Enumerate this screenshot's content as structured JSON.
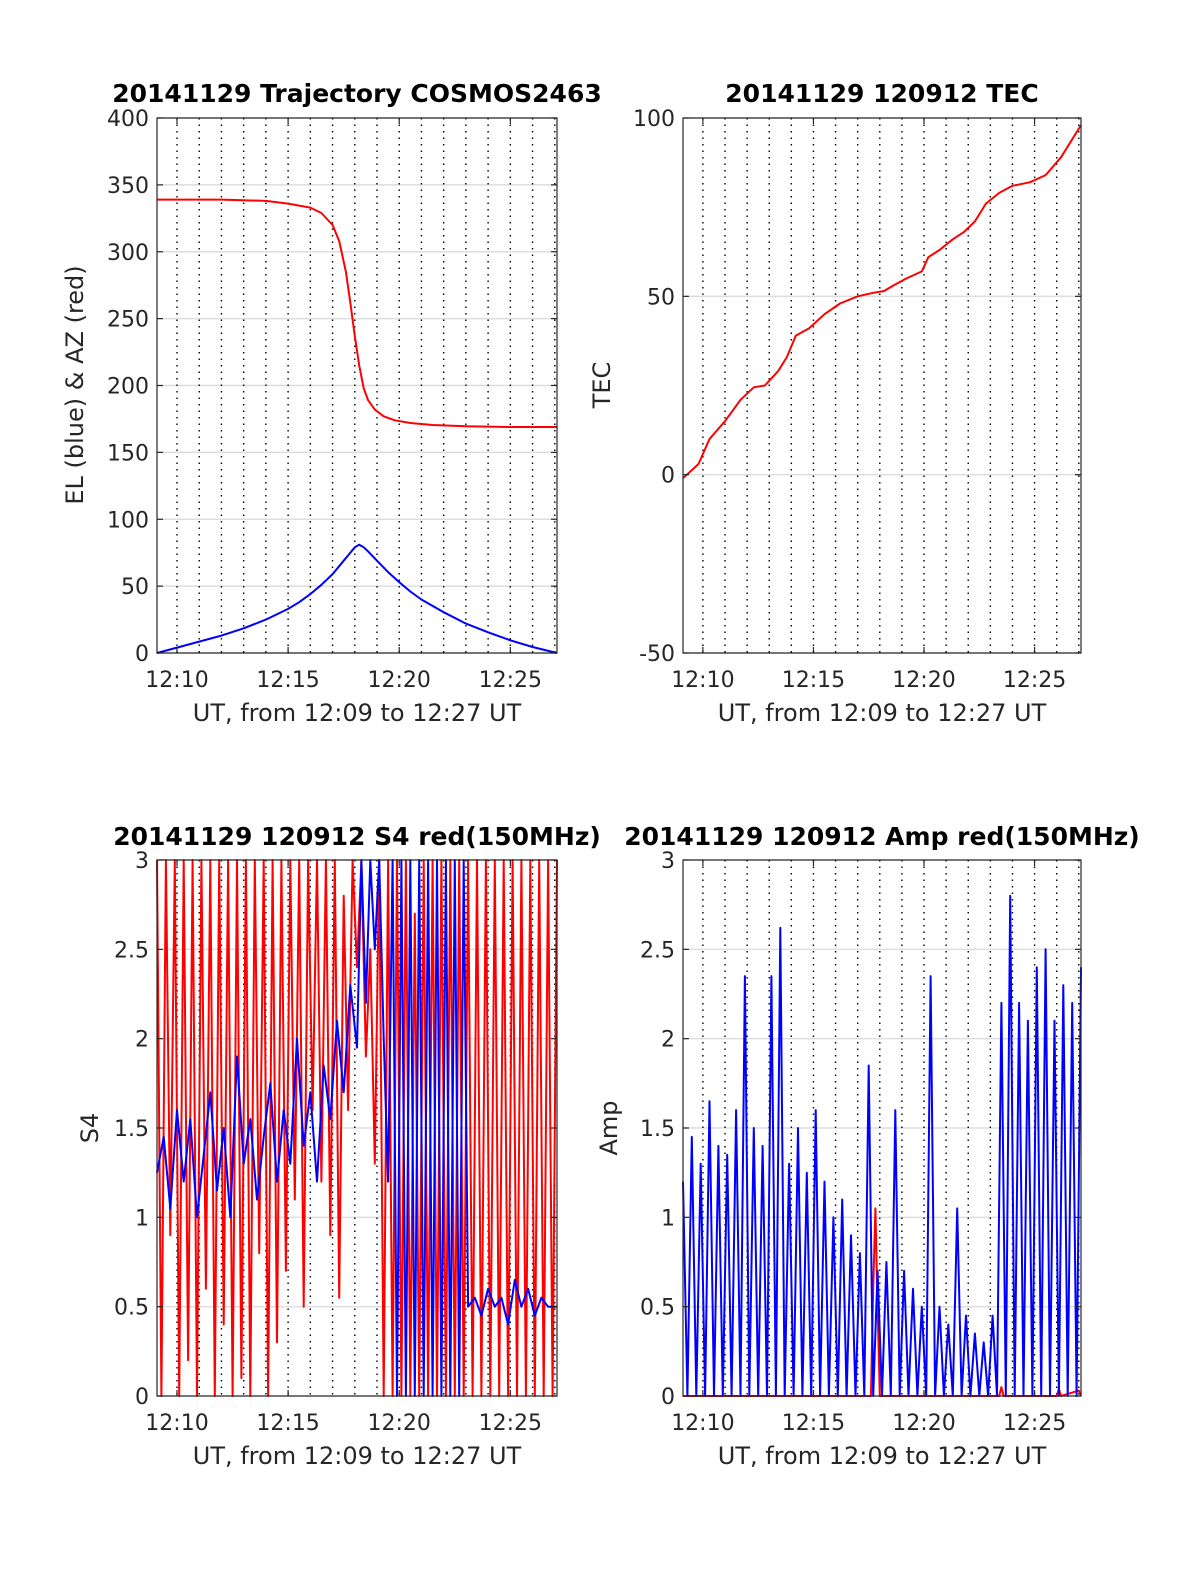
{
  "chart_data": [
    {
      "type": "line",
      "title": "20141129 Trajectory COSMOS2463",
      "xlabel": "UT, from 12:09 to 12:27 UT",
      "ylabel": "EL (blue) & AZ (red)",
      "xlim": [
        9.1,
        27.1
      ],
      "ylim": [
        0,
        400
      ],
      "xticks": [
        10,
        15,
        20,
        25
      ],
      "xtick_labels": [
        "12:10",
        "12:15",
        "12:20",
        "12:25"
      ],
      "yticks": [
        0,
        50,
        100,
        150,
        200,
        250,
        300,
        350,
        400
      ],
      "ytick_labels": [
        "0",
        "50",
        "100",
        "150",
        "200",
        "250",
        "300",
        "350",
        "400"
      ],
      "grid": true,
      "series": [
        {
          "color": "#ff0000",
          "x": [
            9.1,
            10,
            12,
            14,
            15,
            16,
            16.5,
            17,
            17.3,
            17.6,
            17.8,
            18.0,
            18.2,
            18.4,
            18.6,
            18.9,
            19.3,
            19.8,
            20.5,
            21.5,
            23,
            25,
            27.1
          ],
          "y": [
            339,
            339,
            339,
            338,
            336,
            333,
            329,
            320,
            308,
            285,
            262,
            237,
            215,
            198,
            189,
            182,
            177,
            174,
            172,
            170.5,
            169.5,
            169,
            169
          ]
        },
        {
          "color": "#0000ff",
          "x": [
            9.1,
            10,
            11,
            12,
            13,
            14,
            15,
            15.5,
            16,
            16.5,
            17,
            17.5,
            17.8,
            18.0,
            18.2,
            18.4,
            18.6,
            19,
            19.5,
            20,
            20.5,
            21,
            22,
            23,
            24,
            25,
            26,
            27.1
          ],
          "y": [
            0,
            4,
            8.5,
            13,
            18.5,
            25,
            33,
            38,
            44,
            51,
            59,
            69,
            75,
            79,
            81,
            79,
            76,
            69,
            60.5,
            53,
            46,
            40,
            30.5,
            22,
            15.5,
            9.5,
            4.5,
            0
          ]
        }
      ]
    },
    {
      "type": "line",
      "title": "20141129 120912 TEC",
      "xlabel": "UT, from 12:09 to 12:27 UT",
      "ylabel": "TEC",
      "xlim": [
        9.1,
        27.1
      ],
      "ylim": [
        -50,
        100
      ],
      "xticks": [
        10,
        15,
        20,
        25
      ],
      "xtick_labels": [
        "12:10",
        "12:15",
        "12:20",
        "12:25"
      ],
      "yticks": [
        -50,
        0,
        50,
        100
      ],
      "ytick_labels": [
        "-50",
        "0",
        "50",
        "100"
      ],
      "grid": true,
      "series": [
        {
          "color": "#ff0000",
          "x": [
            9.1,
            9.8,
            10.3,
            11,
            11.7,
            12.3,
            12.8,
            13.4,
            13.8,
            14.2,
            14.8,
            15.5,
            16.2,
            17,
            17.7,
            18.2,
            18.6,
            19.2,
            19.9,
            20.2,
            20.7,
            21.3,
            21.8,
            22.3,
            22.8,
            23.4,
            24,
            24.8,
            25.5,
            26.2,
            27.1
          ],
          "y": [
            -1,
            3,
            10,
            15,
            21,
            24.5,
            25,
            29,
            33,
            39,
            41,
            45,
            48,
            50,
            51,
            51.5,
            53,
            55,
            57,
            61,
            63,
            66,
            68,
            71,
            76,
            79,
            81,
            82,
            84,
            89,
            98
          ]
        }
      ]
    },
    {
      "type": "line",
      "title": "20141129 120912 S4 red(150MHz)",
      "xlabel": "UT, from 12:09 to 12:27 UT",
      "ylabel": "S4",
      "xlim": [
        9.1,
        27.1
      ],
      "ylim": [
        0,
        3
      ],
      "xticks": [
        10,
        15,
        20,
        25
      ],
      "xtick_labels": [
        "12:10",
        "12:15",
        "12:20",
        "12:25"
      ],
      "yticks": [
        0,
        0.5,
        1,
        1.5,
        2,
        2.5,
        3
      ],
      "ytick_labels": [
        "0",
        "0.5",
        "1",
        "1.5",
        "2",
        "2.5",
        "3"
      ],
      "grid": true,
      "series": [
        {
          "color": "#ff0000",
          "x": [
            9.1,
            9.3,
            9.5,
            9.7,
            9.9,
            10.1,
            10.3,
            10.5,
            10.7,
            10.9,
            11.1,
            11.3,
            11.5,
            11.7,
            11.9,
            12.1,
            12.3,
            12.5,
            12.7,
            12.9,
            13.1,
            13.3,
            13.5,
            13.7,
            13.9,
            14.1,
            14.3,
            14.5,
            14.7,
            14.9,
            15.1,
            15.3,
            15.5,
            15.7,
            15.9,
            16.1,
            16.3,
            16.5,
            16.7,
            16.9,
            17.1,
            17.3,
            17.5,
            17.7,
            17.9,
            18.1,
            18.3,
            18.5,
            18.7,
            18.9,
            19.1,
            19.3,
            19.5,
            19.7,
            19.9,
            20.1,
            20.3,
            20.5,
            20.7,
            20.9,
            21.1,
            21.3,
            21.5,
            21.7,
            21.9,
            22.1,
            22.3,
            22.5,
            22.7,
            22.9,
            23.1,
            23.3,
            23.5,
            23.7,
            23.9,
            24.1,
            24.3,
            24.5,
            24.7,
            24.9,
            25.1,
            25.3,
            25.5,
            25.7,
            25.9,
            26.1,
            26.3,
            26.5,
            26.7,
            26.9,
            27.1
          ],
          "y": [
            3,
            0,
            3,
            0.9,
            3,
            0,
            3,
            0.2,
            3,
            0,
            3,
            0.6,
            3,
            0,
            3,
            0.4,
            3,
            0,
            3,
            0.1,
            3,
            0,
            3,
            0.8,
            3,
            0,
            3,
            0.3,
            3,
            0.7,
            3,
            1.1,
            3,
            0.5,
            3,
            1.6,
            3,
            1.2,
            3,
            0.9,
            3,
            0.55,
            2.8,
            1.6,
            3,
            2.4,
            3,
            1.9,
            2.5,
            1.3,
            3,
            0,
            3,
            0,
            3,
            0,
            3,
            0,
            2.7,
            0,
            3,
            0,
            3,
            0,
            3,
            0,
            3,
            0,
            3,
            0,
            3,
            0,
            3,
            0,
            3,
            0,
            3,
            0,
            3,
            0,
            3,
            0,
            3,
            0,
            3,
            0,
            3,
            0,
            3,
            0,
            3
          ]
        },
        {
          "color": "#0000ff",
          "x": [
            9.1,
            9.4,
            9.7,
            10.0,
            10.3,
            10.6,
            10.9,
            11.2,
            11.5,
            11.8,
            12.1,
            12.4,
            12.7,
            13.0,
            13.3,
            13.6,
            13.9,
            14.2,
            14.5,
            14.8,
            15.1,
            15.4,
            15.7,
            16.0,
            16.3,
            16.6,
            16.9,
            17.2,
            17.5,
            17.8,
            18.1,
            18.3,
            18.5,
            18.7,
            18.9,
            19.1,
            19.3,
            19.5,
            19.7,
            19.9,
            20.1,
            20.3,
            20.5,
            20.7,
            20.9,
            21.1,
            21.3,
            21.5,
            21.7,
            21.9,
            22.1,
            22.3,
            22.5,
            22.7,
            22.9,
            23.1,
            23.4,
            23.7,
            24.0,
            24.3,
            24.6,
            24.9,
            25.2,
            25.5,
            25.8,
            26.1,
            26.4,
            26.7,
            27.1
          ],
          "y": [
            1.25,
            1.45,
            1.05,
            1.6,
            1.2,
            1.55,
            1.0,
            1.35,
            1.7,
            1.15,
            1.5,
            1.0,
            1.9,
            1.3,
            1.55,
            1.1,
            1.45,
            1.75,
            1.2,
            1.6,
            1.3,
            2.0,
            1.4,
            1.7,
            1.2,
            1.85,
            1.55,
            2.1,
            1.7,
            2.3,
            1.95,
            3.0,
            2.2,
            3.0,
            2.5,
            3.0,
            2.0,
            1.2,
            3.0,
            0,
            3.0,
            0,
            3.0,
            0,
            3.0,
            0,
            3.0,
            0,
            3.0,
            0,
            3.0,
            0,
            3.0,
            0,
            3.0,
            0.5,
            0.55,
            0.45,
            0.6,
            0.5,
            0.55,
            0.4,
            0.65,
            0.5,
            0.6,
            0.45,
            0.55,
            0.5,
            0.5
          ]
        }
      ]
    },
    {
      "type": "line",
      "title": "20141129 120912 Amp red(150MHz)",
      "xlabel": "UT, from 12:09 to 12:27 UT",
      "ylabel": "Amp",
      "xlim": [
        9.1,
        27.1
      ],
      "ylim": [
        0,
        3
      ],
      "xticks": [
        10,
        15,
        20,
        25
      ],
      "xtick_labels": [
        "12:10",
        "12:15",
        "12:20",
        "12:25"
      ],
      "yticks": [
        0,
        0.5,
        1,
        1.5,
        2,
        2.5,
        3
      ],
      "ytick_labels": [
        "0",
        "0.5",
        "1",
        "1.5",
        "2",
        "2.5",
        "3"
      ],
      "grid": true,
      "series": [
        {
          "color": "#ff0000",
          "x": [
            9.1,
            17.6,
            17.7,
            17.8,
            17.9,
            18.0,
            23.4,
            23.5,
            23.6,
            26.0,
            26.1,
            26.2,
            27.0,
            27.1
          ],
          "y": [
            0,
            0,
            0.6,
            1.05,
            0.5,
            0,
            0,
            0.05,
            0,
            0,
            0.04,
            0,
            0.03,
            0
          ]
        },
        {
          "color": "#0000ff",
          "x": [
            9.1,
            9.3,
            9.5,
            9.7,
            9.9,
            10.1,
            10.3,
            10.5,
            10.7,
            10.9,
            11.1,
            11.3,
            11.5,
            11.7,
            11.9,
            12.1,
            12.3,
            12.5,
            12.7,
            12.9,
            13.1,
            13.3,
            13.5,
            13.7,
            13.9,
            14.1,
            14.3,
            14.5,
            14.7,
            14.9,
            15.1,
            15.3,
            15.5,
            15.7,
            15.9,
            16.1,
            16.3,
            16.5,
            16.7,
            16.9,
            17.1,
            17.3,
            17.5,
            17.7,
            17.9,
            18.1,
            18.3,
            18.5,
            18.7,
            18.9,
            19.1,
            19.3,
            19.5,
            19.7,
            19.9,
            20.1,
            20.3,
            20.5,
            20.7,
            20.9,
            21.1,
            21.3,
            21.5,
            21.7,
            21.9,
            22.1,
            22.3,
            22.5,
            22.7,
            22.9,
            23.1,
            23.3,
            23.5,
            23.7,
            23.9,
            24.1,
            24.3,
            24.5,
            24.7,
            24.9,
            25.1,
            25.3,
            25.5,
            25.7,
            25.9,
            26.1,
            26.3,
            26.5,
            26.7,
            26.9,
            27.1
          ],
          "y": [
            1.2,
            0,
            1.45,
            0,
            1.3,
            0,
            1.65,
            0,
            1.4,
            0,
            1.35,
            0,
            1.6,
            0,
            2.35,
            0,
            1.5,
            0,
            1.4,
            0,
            2.35,
            0,
            2.62,
            0,
            1.3,
            0,
            1.5,
            0,
            1.25,
            0,
            1.6,
            0,
            1.2,
            0,
            1.0,
            0,
            1.1,
            0,
            0.9,
            0,
            0.8,
            0,
            1.85,
            0,
            0.7,
            0,
            0.75,
            0,
            1.6,
            0,
            0.7,
            0,
            0.6,
            0,
            0.5,
            0,
            2.35,
            0,
            0.5,
            0,
            0.4,
            0,
            1.05,
            0,
            0.45,
            0,
            0.35,
            0,
            0.3,
            0,
            0.45,
            0,
            2.2,
            0,
            2.8,
            0,
            2.2,
            0,
            2.1,
            0,
            2.4,
            0,
            2.5,
            0,
            2.1,
            0,
            2.3,
            0,
            2.2,
            0,
            2.4
          ]
        }
      ]
    }
  ]
}
